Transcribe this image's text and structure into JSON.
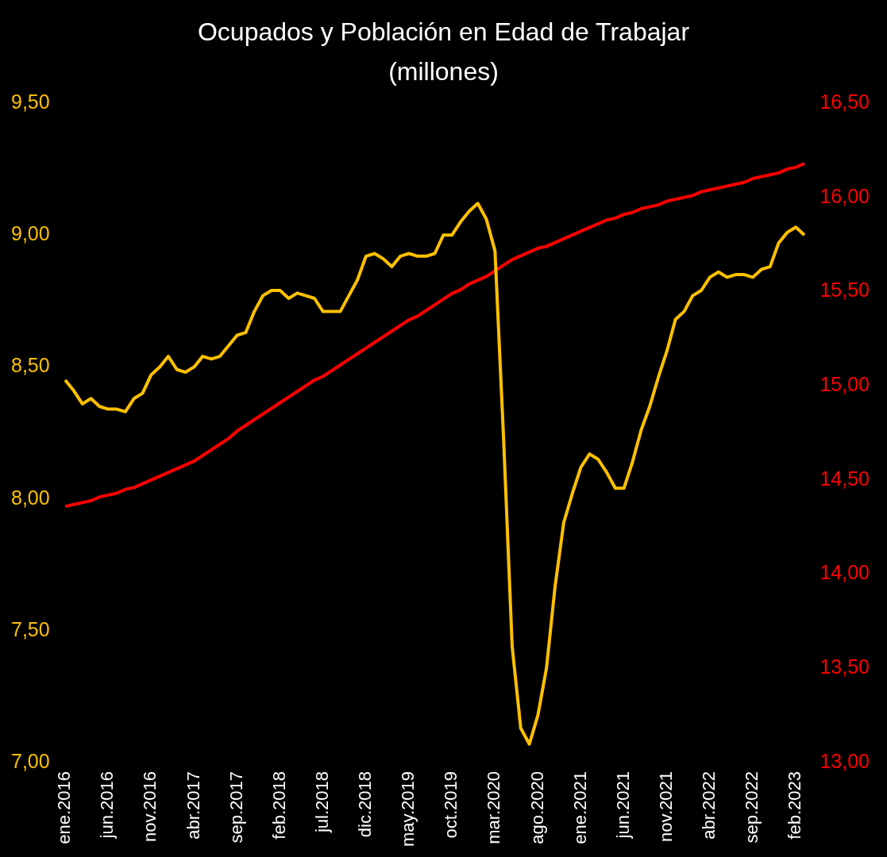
{
  "chart_data": {
    "type": "line",
    "title": "Ocupados y Población en Edad de Trabajar",
    "subtitle": "(millones)",
    "categories": [
      "ene.2016",
      null,
      null,
      null,
      null,
      "jun.2016",
      null,
      null,
      null,
      null,
      "nov.2016",
      null,
      null,
      null,
      null,
      "abr.2017",
      null,
      null,
      null,
      null,
      "sep.2017",
      null,
      null,
      null,
      null,
      "feb.2018",
      null,
      null,
      null,
      null,
      "jul.2018",
      null,
      null,
      null,
      null,
      "dic.2018",
      null,
      null,
      null,
      null,
      "may.2019",
      null,
      null,
      null,
      null,
      "oct.2019",
      null,
      null,
      null,
      null,
      "mar.2020",
      null,
      null,
      null,
      null,
      "ago.2020",
      null,
      null,
      null,
      null,
      "ene.2021",
      null,
      null,
      null,
      null,
      "jun.2021",
      null,
      null,
      null,
      null,
      "nov.2021",
      null,
      null,
      null,
      null,
      "abr.2022",
      null,
      null,
      null,
      null,
      "sep.2022",
      null,
      null,
      null,
      null,
      "feb.2023",
      null
    ],
    "series": [
      {
        "color": "#ffc000",
        "values": [
          8.45,
          8.41,
          8.36,
          8.38,
          8.35,
          8.34,
          8.34,
          8.33,
          8.38,
          8.4,
          8.47,
          8.5,
          8.54,
          8.49,
          8.48,
          8.5,
          8.54,
          8.53,
          8.54,
          8.58,
          8.62,
          8.63,
          8.71,
          8.77,
          8.79,
          8.79,
          8.76,
          8.78,
          8.77,
          8.76,
          8.71,
          8.71,
          8.71,
          8.77,
          8.83,
          8.92,
          8.93,
          8.91,
          8.88,
          8.92,
          8.93,
          8.92,
          8.92,
          8.93,
          9.0,
          9.0,
          9.05,
          9.09,
          9.12,
          9.06,
          8.94,
          8.23,
          7.44,
          7.13,
          7.07,
          7.18,
          7.36,
          7.67,
          7.91,
          8.02,
          8.12,
          8.17,
          8.15,
          8.1,
          8.04,
          8.04,
          8.14,
          8.26,
          8.35,
          8.46,
          8.56,
          8.68,
          8.71,
          8.77,
          8.79,
          8.84,
          8.86,
          8.84,
          8.85,
          8.85,
          8.84,
          8.87,
          8.88,
          8.97,
          9.01,
          9.03,
          9.0
        ]
      },
      {
        "color": "#ff0000",
        "axis": "y2",
        "values": [
          14.36,
          14.37,
          14.38,
          14.39,
          14.41,
          14.42,
          14.43,
          14.45,
          14.46,
          14.48,
          14.5,
          14.52,
          14.54,
          14.56,
          14.58,
          14.6,
          14.63,
          14.66,
          14.69,
          14.72,
          14.76,
          14.79,
          14.82,
          14.85,
          14.88,
          14.91,
          14.94,
          14.97,
          15.0,
          15.03,
          15.05,
          15.08,
          15.11,
          15.14,
          15.17,
          15.2,
          15.23,
          15.26,
          15.29,
          15.32,
          15.35,
          15.37,
          15.4,
          15.43,
          15.46,
          15.49,
          15.51,
          15.54,
          15.56,
          15.58,
          15.61,
          15.64,
          15.67,
          15.69,
          15.71,
          15.73,
          15.74,
          15.76,
          15.78,
          15.8,
          15.82,
          15.84,
          15.86,
          15.88,
          15.89,
          15.91,
          15.92,
          15.94,
          15.95,
          15.96,
          15.98,
          15.99,
          16.0,
          16.01,
          16.03,
          16.04,
          16.05,
          16.06,
          16.07,
          16.08,
          16.1,
          16.11,
          16.12,
          16.13,
          16.15,
          16.16,
          16.18
        ]
      }
    ],
    "ylim": [
      7,
      9.5
    ],
    "yticks": [
      {
        "value": 7,
        "label": "7,00"
      },
      {
        "value": 7.5,
        "label": "7,50"
      },
      {
        "value": 8,
        "label": "8,00"
      },
      {
        "value": 8.5,
        "label": "8,50"
      },
      {
        "value": 9,
        "label": "9,00"
      },
      {
        "value": 9.5,
        "label": "9,50"
      }
    ],
    "y2lim": [
      13,
      16.5
    ],
    "y2ticks": [
      {
        "value": 13,
        "label": "13,00"
      },
      {
        "value": 13.5,
        "label": "13,50"
      },
      {
        "value": 14,
        "label": "14,00"
      },
      {
        "value": 14.5,
        "label": "14,50"
      },
      {
        "value": 15,
        "label": "15,00"
      },
      {
        "value": 15.5,
        "label": "15,50"
      },
      {
        "value": 16,
        "label": "16,00"
      },
      {
        "value": 16.5,
        "label": "16,50"
      }
    ],
    "grid": false,
    "legend": false
  }
}
